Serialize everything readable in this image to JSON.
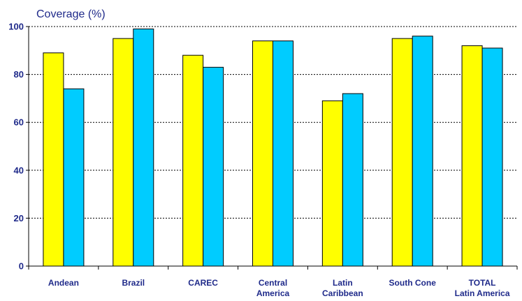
{
  "chart_data": {
    "type": "bar",
    "title": "",
    "ylabel": "Coverage (%)",
    "xlabel": "",
    "ylim": [
      0,
      100
    ],
    "yticks": [
      0,
      20,
      40,
      60,
      80,
      100
    ],
    "grid": true,
    "categories": [
      [
        "Andean"
      ],
      [
        "Brazil"
      ],
      [
        "CAREC"
      ],
      [
        "Central",
        "America"
      ],
      [
        "Latin",
        "Caribbean"
      ],
      [
        "South Cone"
      ],
      [
        "TOTAL",
        "Latin America"
      ]
    ],
    "series": [
      {
        "color": "#ffff00",
        "values": [
          89,
          95,
          88,
          94,
          69,
          95,
          92
        ]
      },
      {
        "color": "#00ccff",
        "values": [
          74,
          99,
          83,
          94,
          72,
          96,
          91
        ]
      }
    ]
  }
}
